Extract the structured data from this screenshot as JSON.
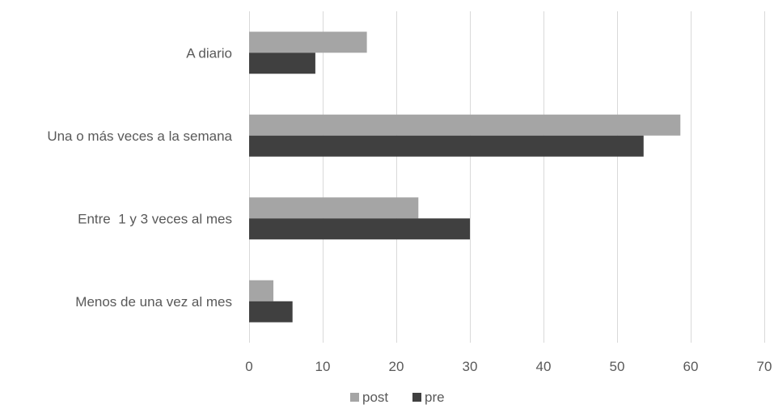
{
  "chart_data": {
    "type": "bar",
    "orientation": "horizontal",
    "categories": [
      "A diario",
      "Una o más veces a la semana",
      "Entre  1 y 3 veces al mes",
      "Menos de una vez al mes"
    ],
    "series": [
      {
        "name": "post",
        "values": [
          16,
          58.6,
          23,
          3.3
        ],
        "color": "#a5a5a5"
      },
      {
        "name": "pre",
        "values": [
          9,
          53.6,
          30,
          5.9
        ],
        "color": "#404040"
      }
    ],
    "xlim": [
      0,
      70
    ],
    "xticks": [
      0,
      10,
      20,
      30,
      40,
      50,
      60,
      70
    ],
    "grid": "vertical",
    "legend_position": "bottom",
    "gridline_color": "#d9d9d9"
  }
}
